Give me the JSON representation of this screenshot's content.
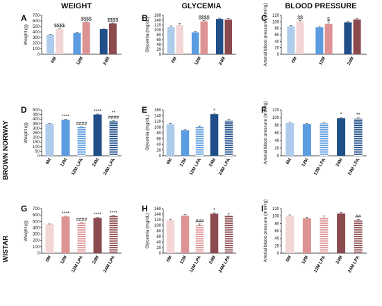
{
  "figure": {
    "column_titles": [
      "WEIGHT",
      "GLYCEMIA",
      "BLOOD PRESSURE"
    ],
    "row_titles": [
      "",
      "BROWN NORWAY",
      "WISTAR"
    ]
  },
  "colors": {
    "bn_light": "#aecbec",
    "wistar_light": "#f3d5d5",
    "bn_mid": "#5b9be0",
    "wistar_mid": "#dd9393",
    "bn_dark": "#1f4e88",
    "wistar_dark": "#8b4b4e"
  },
  "chart_data": [
    {
      "panel": "A",
      "type": "bar",
      "ylabel": "Weight (g)",
      "ylim": [
        0,
        700
      ],
      "yticks": [
        0,
        100,
        200,
        300,
        400,
        500,
        600,
        700
      ],
      "groups": [
        "6M",
        "12M",
        "24M"
      ],
      "bars": [
        {
          "group": 0,
          "value": 350,
          "err": 5,
          "color": "#aecbec"
        },
        {
          "group": 0,
          "value": 455,
          "err": 8,
          "color": "#f3d5d5",
          "annotation": "$$$$"
        },
        {
          "group": 1,
          "value": 385,
          "err": 6,
          "color": "#5b9be0"
        },
        {
          "group": 1,
          "value": 575,
          "err": 8,
          "color": "#dd9393",
          "annotation": "$$$$"
        },
        {
          "group": 2,
          "value": 450,
          "err": 6,
          "color": "#1f4e88"
        },
        {
          "group": 2,
          "value": 555,
          "err": 8,
          "color": "#8b4b4e",
          "annotation": "$$$$"
        }
      ]
    },
    {
      "panel": "B",
      "type": "bar",
      "ylabel": "Glycemia (mg/dL)",
      "ylim": [
        0,
        160
      ],
      "yticks": [
        0,
        20,
        40,
        60,
        80,
        100,
        120,
        140,
        160
      ],
      "groups": [
        "6M",
        "12M",
        "24M"
      ],
      "bars": [
        {
          "group": 0,
          "value": 112,
          "err": 5,
          "color": "#aecbec"
        },
        {
          "group": 0,
          "value": 120,
          "err": 7,
          "color": "#f3d5d5"
        },
        {
          "group": 1,
          "value": 90,
          "err": 3,
          "color": "#5b9be0"
        },
        {
          "group": 1,
          "value": 135,
          "err": 4,
          "color": "#dd9393",
          "annotation": "$$$$"
        },
        {
          "group": 2,
          "value": 145,
          "err": 3,
          "color": "#1f4e88"
        },
        {
          "group": 2,
          "value": 142,
          "err": 5,
          "color": "#8b4b4e"
        }
      ]
    },
    {
      "panel": "C",
      "type": "bar",
      "ylabel": "Arterial blood pressure (mmHg)",
      "ylim": [
        0,
        120
      ],
      "yticks": [
        0,
        20,
        40,
        60,
        80,
        100,
        120
      ],
      "groups": [
        "6M",
        "12M",
        "24M"
      ],
      "bars": [
        {
          "group": 0,
          "value": 86,
          "err": 3,
          "color": "#aecbec"
        },
        {
          "group": 0,
          "value": 100,
          "err": 4,
          "color": "#f3d5d5",
          "annotation": "$$"
        },
        {
          "group": 1,
          "value": 83,
          "err": 3,
          "color": "#5b9be0"
        },
        {
          "group": 1,
          "value": 94,
          "err": 5,
          "color": "#dd9393",
          "annotation": "$"
        },
        {
          "group": 2,
          "value": 98,
          "err": 4,
          "color": "#1f4e88"
        },
        {
          "group": 2,
          "value": 107,
          "err": 3,
          "color": "#8b4b4e"
        }
      ]
    },
    {
      "panel": "D",
      "type": "bar",
      "ylabel": "Weight (g)",
      "ylim": [
        0,
        500
      ],
      "yticks": [
        0,
        50,
        100,
        150,
        200,
        250,
        300,
        350,
        400,
        450,
        500
      ],
      "categories": [
        "6M",
        "12M",
        "12M LPA",
        "24M",
        "24M LPA"
      ],
      "values": [
        350,
        393,
        312,
        450,
        380
      ],
      "errors": [
        4,
        5,
        5,
        5,
        5
      ],
      "colors": [
        "#aecbec",
        "#5b9be0",
        "#5b9be0",
        "#1f4e88",
        "#1f4e88"
      ],
      "striped": [
        false,
        false,
        true,
        false,
        true
      ],
      "annotations": [
        "",
        "****",
        "####",
        "****",
        "**\n####"
      ]
    },
    {
      "panel": "E",
      "type": "bar",
      "ylabel": "Glycemia (mg/dL)",
      "ylim": [
        0,
        160
      ],
      "yticks": [
        0,
        20,
        40,
        60,
        80,
        100,
        120,
        140,
        160
      ],
      "categories": [
        "6M",
        "12M",
        "12M LPA",
        "24M",
        "24M LPA"
      ],
      "values": [
        110,
        89,
        100,
        145,
        122
      ],
      "errors": [
        3,
        2,
        4,
        3,
        5
      ],
      "colors": [
        "#aecbec",
        "#5b9be0",
        "#5b9be0",
        "#1f4e88",
        "#1f4e88"
      ],
      "striped": [
        false,
        false,
        true,
        false,
        true
      ],
      "annotations": [
        "",
        "",
        "",
        "*",
        ""
      ]
    },
    {
      "panel": "F",
      "type": "bar",
      "ylabel": "Arterial blood pressure (mmHg)",
      "ylim": [
        0,
        120
      ],
      "yticks": [
        0,
        20,
        40,
        60,
        80,
        100,
        120
      ],
      "categories": [
        "6M",
        "12M",
        "12M LPA",
        "24M",
        "24M LPA"
      ],
      "values": [
        86,
        83,
        85,
        98,
        97
      ],
      "errors": [
        2,
        2,
        2,
        3,
        3
      ],
      "colors": [
        "#aecbec",
        "#5b9be0",
        "#5b9be0",
        "#1f4e88",
        "#1f4e88"
      ],
      "striped": [
        false,
        false,
        true,
        false,
        true
      ],
      "annotations": [
        "",
        "",
        "",
        "*",
        "**"
      ]
    },
    {
      "panel": "G",
      "type": "bar",
      "ylabel": "Weight (g)",
      "ylim": [
        0,
        700
      ],
      "yticks": [
        0,
        100,
        200,
        300,
        400,
        500,
        600,
        700
      ],
      "categories": [
        "6M",
        "12M",
        "12M LPA",
        "24M",
        "24M LPA"
      ],
      "values": [
        455,
        575,
        475,
        555,
        585
      ],
      "errors": [
        5,
        6,
        6,
        6,
        8
      ],
      "colors": [
        "#f3d5d5",
        "#dd9393",
        "#dd9393",
        "#8b4b4e",
        "#8b4b4e"
      ],
      "striped": [
        false,
        false,
        true,
        false,
        true
      ],
      "annotations": [
        "",
        "****",
        "####",
        "****",
        "****"
      ]
    },
    {
      "panel": "H",
      "type": "bar",
      "ylabel": "Glycemia (mg/dL)",
      "ylim": [
        0,
        160
      ],
      "yticks": [
        0,
        20,
        40,
        60,
        80,
        100,
        120,
        140,
        160
      ],
      "categories": [
        "6M",
        "12M",
        "12M LPA",
        "24M",
        "24M LPA"
      ],
      "values": [
        118,
        135,
        100,
        142,
        135
      ],
      "errors": [
        4,
        4,
        5,
        3,
        7
      ],
      "colors": [
        "#f3d5d5",
        "#dd9393",
        "#dd9393",
        "#8b4b4e",
        "#8b4b4e"
      ],
      "striped": [
        false,
        false,
        true,
        false,
        true
      ],
      "annotations": [
        "",
        "",
        "###",
        "*",
        ""
      ]
    },
    {
      "panel": "I",
      "type": "bar",
      "ylabel": "Arterial blood pressure (mmHg)",
      "ylim": [
        0,
        120
      ],
      "yticks": [
        0,
        20,
        40,
        60,
        80,
        100,
        120
      ],
      "categories": [
        "6M",
        "12M",
        "12M LPA",
        "24M",
        "24M LPA"
      ],
      "values": [
        100,
        94,
        95,
        107,
        88
      ],
      "errors": [
        3,
        3,
        5,
        3,
        3
      ],
      "colors": [
        "#f3d5d5",
        "#dd9393",
        "#dd9393",
        "#8b4b4e",
        "#8b4b4e"
      ],
      "striped": [
        false,
        false,
        true,
        false,
        true
      ],
      "annotations": [
        "",
        "",
        "",
        "",
        "##"
      ]
    }
  ]
}
